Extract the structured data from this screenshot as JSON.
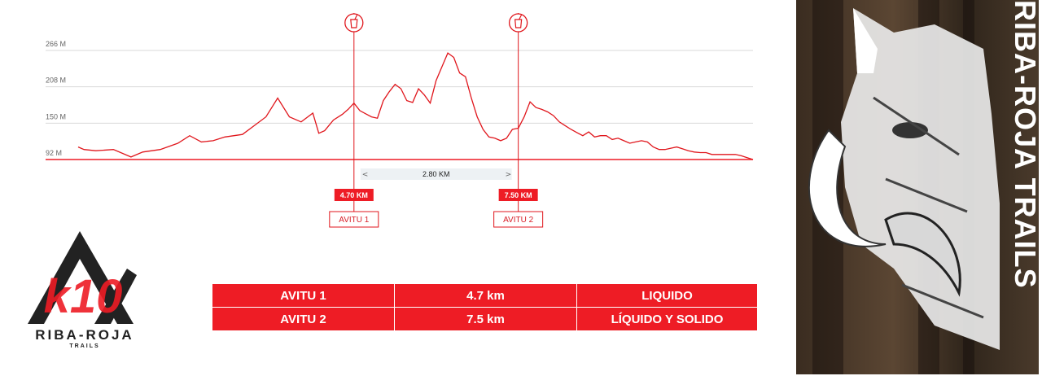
{
  "chart_data": {
    "type": "line",
    "y_ticks": [
      "266 M",
      "208 M",
      "150 M",
      "92 M"
    ],
    "y_tick_values": [
      266,
      208,
      150,
      92
    ],
    "ylim": [
      92,
      266
    ],
    "xlim": [
      0,
      11.5
    ],
    "grid": true,
    "series": [
      {
        "x": [
          0,
          0.1,
          0.3,
          0.6,
          0.9,
          1.1,
          1.4,
          1.7,
          1.9,
          2.1,
          2.3,
          2.5,
          2.8,
          3.0,
          3.2,
          3.4,
          3.6,
          3.8,
          4.0,
          4.1,
          4.2,
          4.35,
          4.5,
          4.6,
          4.7,
          4.8,
          4.9,
          5.0,
          5.1,
          5.2,
          5.3,
          5.4,
          5.5,
          5.6,
          5.7,
          5.8,
          5.9,
          6.0,
          6.1,
          6.2,
          6.3,
          6.4,
          6.5,
          6.6,
          6.7,
          6.8,
          6.9,
          7.0,
          7.1,
          7.2,
          7.3,
          7.4,
          7.5,
          7.6,
          7.7,
          7.8,
          7.9,
          8.0,
          8.1,
          8.2,
          8.3,
          8.4,
          8.5,
          8.6,
          8.7,
          8.8,
          8.9,
          9.0,
          9.1,
          9.2,
          9.3,
          9.4,
          9.5,
          9.6,
          9.7,
          9.8,
          9.9,
          10.0,
          10.1,
          10.2,
          10.3,
          10.4,
          10.5,
          10.6,
          10.7,
          10.8,
          10.9,
          11.0,
          11.1,
          11.2,
          11.3,
          11.4,
          11.5
        ],
        "y": [
          112,
          108,
          106,
          108,
          96,
          104,
          108,
          118,
          130,
          120,
          122,
          128,
          132,
          146,
          160,
          190,
          160,
          152,
          166,
          134,
          138,
          155,
          164,
          172,
          182,
          170,
          165,
          160,
          158,
          186,
          200,
          212,
          205,
          186,
          183,
          205,
          195,
          182,
          218,
          240,
          262,
          255,
          230,
          224,
          190,
          160,
          140,
          128,
          126,
          122,
          126,
          140,
          142,
          160,
          184,
          175,
          172,
          168,
          162,
          152,
          146,
          140,
          135,
          130,
          136,
          128,
          130,
          130,
          124,
          126,
          122,
          118,
          120,
          122,
          120,
          112,
          108,
          108,
          110,
          112,
          109,
          106,
          104,
          103,
          103,
          100,
          100,
          100,
          100,
          100,
          98,
          95,
          92
        ]
      }
    ],
    "aid_stations": [
      {
        "km_label": "4.70 KM",
        "km": 4.7,
        "name": "AVITU 1"
      },
      {
        "km_label": "7.50 KM",
        "km": 7.5,
        "name": "AVITU 2"
      }
    ],
    "span_label": "2.80 KM"
  },
  "logo": {
    "mark": "k10",
    "name": "RIBA-ROJA",
    "sub": "TRAILS"
  },
  "table": {
    "rows": [
      {
        "station": "AVITU 1",
        "distance": "4.7 km",
        "supply": "LIQUIDO"
      },
      {
        "station": "AVITU 2",
        "distance": "7.5 km",
        "supply": "LÍQUIDO Y SOLIDO"
      }
    ]
  },
  "poster": {
    "title": "RIBA-ROJA TRAILS"
  },
  "colors": {
    "accent": "#ee1c25",
    "line": "#e0161c",
    "grid": "#d9d9d9"
  }
}
